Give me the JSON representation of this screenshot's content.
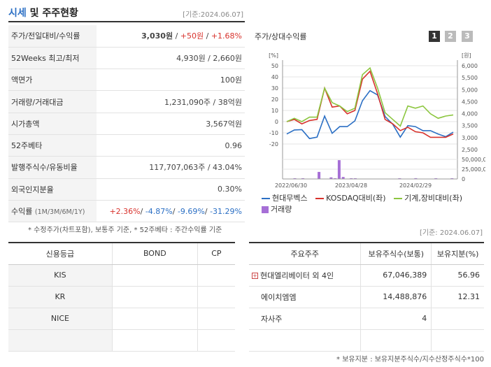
{
  "header": {
    "title_main": "시세",
    "title_rest": " 및 주주현황",
    "date": "[기준:2024.06.07]"
  },
  "info": {
    "rows": [
      {
        "label": "주가/전일대비/수익률"
      },
      {
        "label": "52Weeks 최고/최저",
        "value": "4,930원 / 2,660원"
      },
      {
        "label": "액면가",
        "value": "100원"
      },
      {
        "label": "거래량/거래대금",
        "value": "1,231,090주 / 38억원"
      },
      {
        "label": "시가총액",
        "value": "3,567억원"
      },
      {
        "label": "52주베타",
        "value": "0.96"
      },
      {
        "label": "발행주식수/유동비율",
        "value": "117,707,063주 / 43.04%"
      },
      {
        "label": "외국인지분율",
        "value": "0.30%"
      },
      {
        "label": "수익률",
        "label_sub": "(1M/3M/6M/1Y)"
      }
    ],
    "price": {
      "current": "3,030원",
      "sep1": " / ",
      "change": "+50원",
      "sep2": " / ",
      "rate": "+1.68%"
    },
    "returns": {
      "m1": "+2.36%",
      "m3": "-4.87%",
      "m6": "-9.69%",
      "y1": "-31.29%",
      "sep": "/ "
    },
    "note": "* 수정주가(차트포함), 보통주 기준, * 52주베타 : 주간수익률 기준"
  },
  "chart": {
    "title": "주가/상대수익률",
    "pages": [
      "1",
      "2",
      "3"
    ],
    "left_unit": "[%]",
    "right_unit": "[원]",
    "left_ticks": [
      "50",
      "40",
      "30",
      "20",
      "10",
      "0",
      "-10",
      "-20"
    ],
    "right_ticks": [
      "6,000",
      "5,500",
      "5,000",
      "4,500",
      "4,000",
      "3,500",
      "3,000",
      "2,500"
    ],
    "vol_ticks": [
      "50,000,000",
      "25,000,000",
      "0"
    ],
    "x_labels": [
      "2022/06/30",
      "2023/04/28",
      "2024/02/29"
    ],
    "legend": [
      "현대무벡스",
      "KOSDAQ대비(좌)",
      "기계,장비대비(좌)",
      "거래량"
    ],
    "colors": {
      "price": "#2b6fc4",
      "kosdaq": "#d8322c",
      "sector": "#8cc63f",
      "volume": "#a66fd6"
    }
  },
  "chart_data": {
    "type": "line",
    "title": "주가/상대수익률",
    "x_labels": [
      "2022/06/30",
      "2023/04/28",
      "2024/02/29"
    ],
    "left_ylim": [
      -25,
      50
    ],
    "right_ylim": [
      2500,
      6000
    ],
    "series": [
      {
        "name": "현대무벡스",
        "axis": "right",
        "values": [
          3150,
          3320,
          3330,
          2960,
          3020,
          3900,
          3180,
          3460,
          3460,
          3700,
          4540,
          4960,
          4780,
          3880,
          3560,
          3020,
          3500,
          3460,
          3290,
          3290,
          3150,
          3040,
          3230
        ]
      },
      {
        "name": "KOSDAQ대비(좌)",
        "axis": "left",
        "values": [
          0,
          2,
          -2,
          1,
          2,
          30,
          13,
          14,
          7,
          10,
          38,
          45,
          25,
          2,
          -2,
          -8,
          -5,
          -9,
          -10,
          -14,
          -14,
          -14,
          -11
        ]
      },
      {
        "name": "기계,장비대비(좌)",
        "axis": "left",
        "values": [
          0,
          3,
          0,
          4,
          4,
          30,
          17,
          14,
          9,
          12,
          42,
          48,
          30,
          8,
          2,
          -4,
          14,
          12,
          14,
          7,
          3,
          5,
          6
        ]
      }
    ],
    "volume": {
      "name": "거래량",
      "ylim": [
        0,
        50000000
      ],
      "values": [
        0,
        0,
        1000000,
        0,
        500000,
        0,
        0,
        0,
        18000000,
        0,
        0,
        4000000,
        1000000,
        48000000,
        5000000,
        0,
        1000000,
        1500000,
        0,
        0,
        0,
        0,
        0,
        0,
        0,
        0,
        0,
        0,
        1000000,
        0,
        0,
        0,
        2000000,
        0,
        0,
        0,
        0,
        1000000,
        0,
        0,
        0,
        1500000
      ]
    }
  },
  "credit": {
    "date": "[기준: 2024.06.07]",
    "headers": [
      "신용등급",
      "BOND",
      "CP"
    ],
    "rows": [
      [
        "KIS",
        "",
        ""
      ],
      [
        "KR",
        "",
        ""
      ],
      [
        "NICE",
        "",
        ""
      ],
      [
        "",
        "",
        ""
      ]
    ]
  },
  "holders": {
    "headers": [
      "주요주주",
      "보유주식수(보통)",
      "보유지분(%)"
    ],
    "rows": [
      {
        "name": "현대엘리베이터 외 4인",
        "shares": "67,046,389",
        "pct": "56.96",
        "expand": "+"
      },
      {
        "name": "에이치엠엠",
        "shares": "14,488,876",
        "pct": "12.31"
      },
      {
        "name": "자사주",
        "shares": "4",
        "pct": ""
      },
      {
        "name": "",
        "shares": "",
        "pct": ""
      }
    ],
    "note": "* 보유지분 : 보유지분주식수/지수산정주식수*100"
  }
}
